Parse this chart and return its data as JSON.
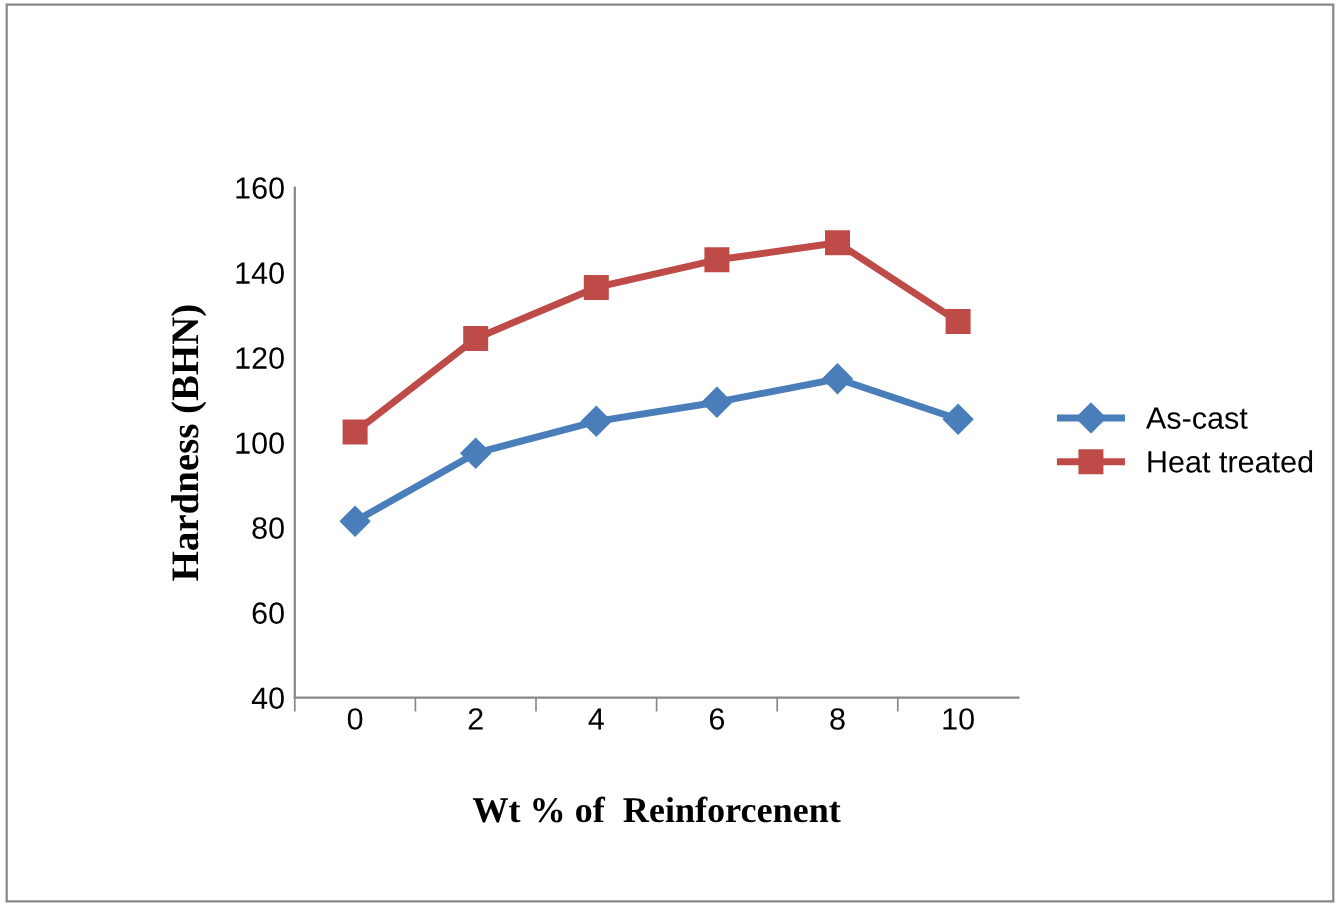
{
  "chart_data": {
    "type": "line",
    "xlabel": "Wt % of  Reinforcenent",
    "ylabel": "Hardness (BHN)",
    "categories": [
      "0",
      "2",
      "4",
      "6",
      "8",
      "10"
    ],
    "series": [
      {
        "name": "As-cast",
        "color": "#4a7ebb",
        "marker": "diamond",
        "values": [
          81.5,
          97.5,
          105,
          109.5,
          115,
          105.5
        ]
      },
      {
        "name": "Heat treated",
        "color": "#be4b48",
        "marker": "square",
        "values": [
          102.5,
          124.5,
          136.5,
          143,
          147,
          128.5
        ]
      }
    ],
    "ylim": [
      40,
      160
    ],
    "yticks": [
      40,
      60,
      80,
      100,
      120,
      140,
      160
    ],
    "grid": false,
    "legend": "right",
    "line_style": "solid"
  }
}
